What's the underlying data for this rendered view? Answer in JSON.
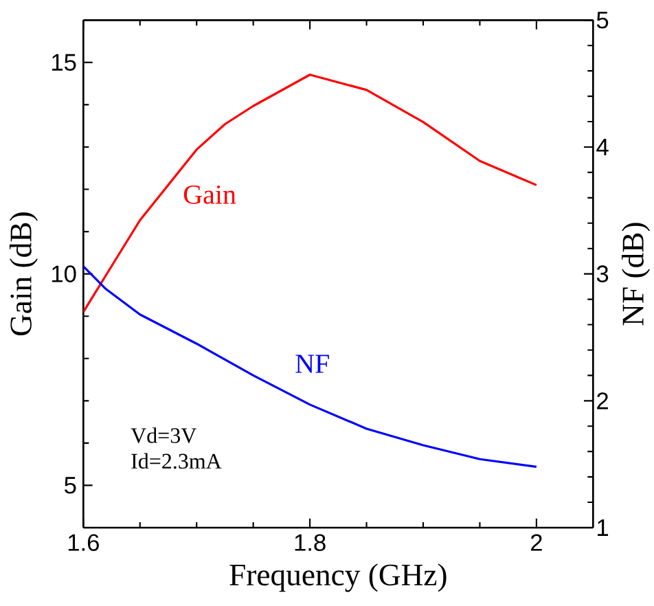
{
  "chart_data": {
    "type": "line",
    "xlabel": "Frequency  (GHz)",
    "ylabel": "Gain (dB)",
    "y2label": "NF (dB)",
    "xlim": [
      1.6,
      2.05
    ],
    "xticks": [
      1.6,
      1.8,
      2
    ],
    "ylim": [
      4,
      16
    ],
    "yticks": [
      5,
      10,
      15
    ],
    "y2lim": [
      1,
      5
    ],
    "y2ticks": [
      1,
      2,
      3,
      4,
      5
    ],
    "annotations": [
      "Vd=3V",
      "Id=2.3mA"
    ],
    "series": [
      {
        "name": "Gain",
        "color": "#ff0000",
        "x": [
          1.6,
          1.62,
          1.65,
          1.7,
          1.725,
          1.75,
          1.8,
          1.85,
          1.9,
          1.95,
          2.0
        ],
        "values": [
          9.1,
          9.97,
          11.27,
          12.94,
          13.54,
          13.97,
          14.71,
          14.35,
          13.59,
          12.67,
          12.1
        ]
      },
      {
        "name": "NF",
        "color": "#0000ff",
        "axis": "y2",
        "x": [
          1.6,
          1.62,
          1.65,
          1.7,
          1.75,
          1.8,
          1.85,
          1.9,
          1.95,
          2.0
        ],
        "values": [
          3.06,
          2.88,
          2.68,
          2.45,
          2.2,
          1.97,
          1.78,
          1.65,
          1.54,
          1.48
        ]
      }
    ]
  }
}
